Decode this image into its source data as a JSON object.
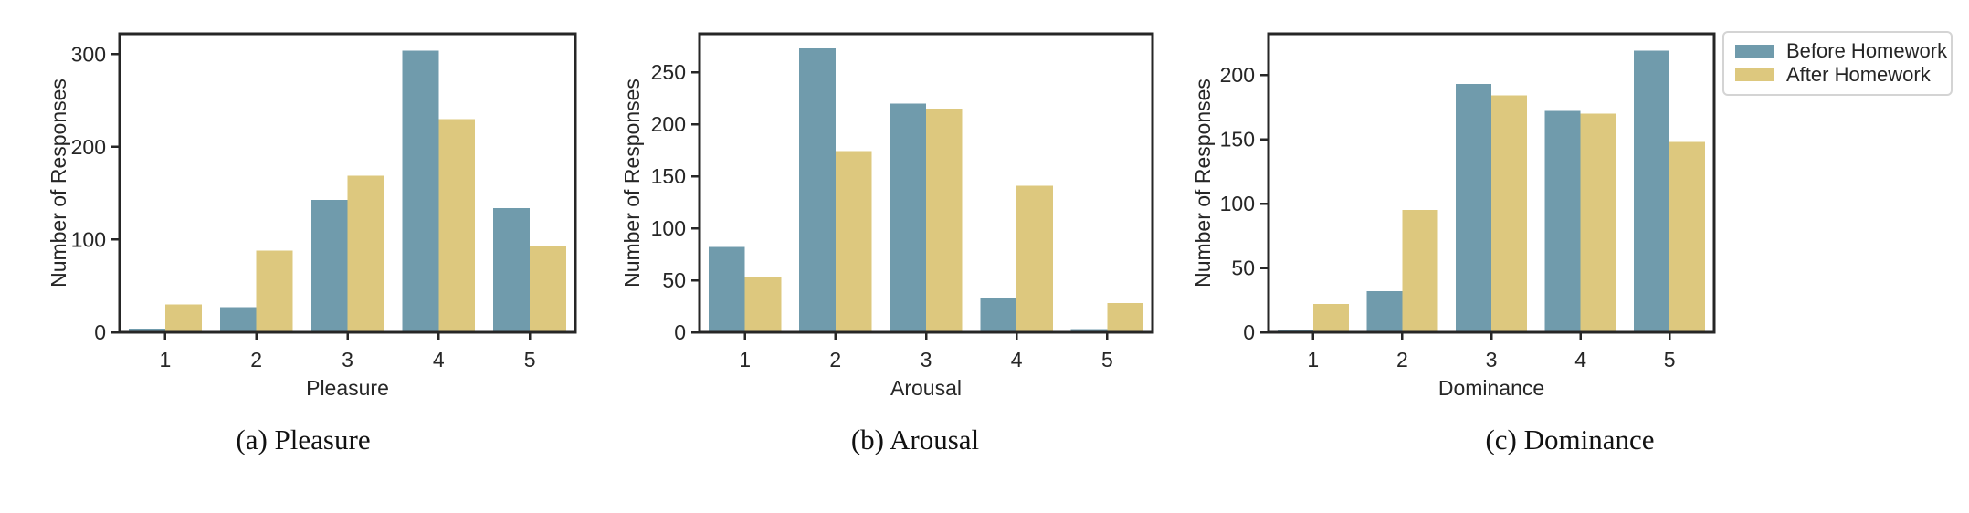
{
  "figure": {
    "background": "#ffffff",
    "text_color": "#262626",
    "axis_color": "#262626",
    "shared_ylabel": "Number of Responses",
    "legend": {
      "position": "figure-top-right",
      "items": [
        {
          "label": "Before Homework",
          "color": "#709bac"
        },
        {
          "label": "After Homework",
          "color": "#ddc87e"
        }
      ]
    }
  },
  "chart_data": [
    {
      "type": "bar",
      "caption": "(a) Pleasure",
      "xlabel": "Pleasure",
      "ylabel": "Number of Responses",
      "categories": [
        "1",
        "2",
        "3",
        "4",
        "5"
      ],
      "series": [
        {
          "name": "Before Homework",
          "color": "#709bac",
          "values": [
            4,
            27,
            143,
            304,
            134
          ]
        },
        {
          "name": "After Homework",
          "color": "#ddc87e",
          "values": [
            30,
            88,
            169,
            230,
            93
          ]
        }
      ],
      "yticks": [
        0,
        100,
        200,
        300
      ],
      "ylim": [
        0,
        322
      ],
      "grid": false
    },
    {
      "type": "bar",
      "caption": "(b) Arousal",
      "xlabel": "Arousal",
      "ylabel": "Number of Responses",
      "categories": [
        "1",
        "2",
        "3",
        "4",
        "5"
      ],
      "series": [
        {
          "name": "Before Homework",
          "color": "#709bac",
          "values": [
            82,
            273,
            220,
            33,
            3
          ]
        },
        {
          "name": "After Homework",
          "color": "#ddc87e",
          "values": [
            53,
            174,
            215,
            141,
            28
          ]
        }
      ],
      "yticks": [
        0,
        50,
        100,
        150,
        200,
        250
      ],
      "ylim": [
        0,
        287
      ],
      "grid": false
    },
    {
      "type": "bar",
      "caption": "(c) Dominance",
      "xlabel": "Dominance",
      "ylabel": "Number of Responses",
      "categories": [
        "1",
        "2",
        "3",
        "4",
        "5"
      ],
      "series": [
        {
          "name": "Before Homework",
          "color": "#709bac",
          "values": [
            2,
            32,
            193,
            172,
            219
          ]
        },
        {
          "name": "After Homework",
          "color": "#ddc87e",
          "values": [
            22,
            95,
            184,
            170,
            148
          ]
        }
      ],
      "yticks": [
        0,
        50,
        100,
        150,
        200
      ],
      "ylim": [
        0,
        232
      ],
      "grid": false
    }
  ]
}
